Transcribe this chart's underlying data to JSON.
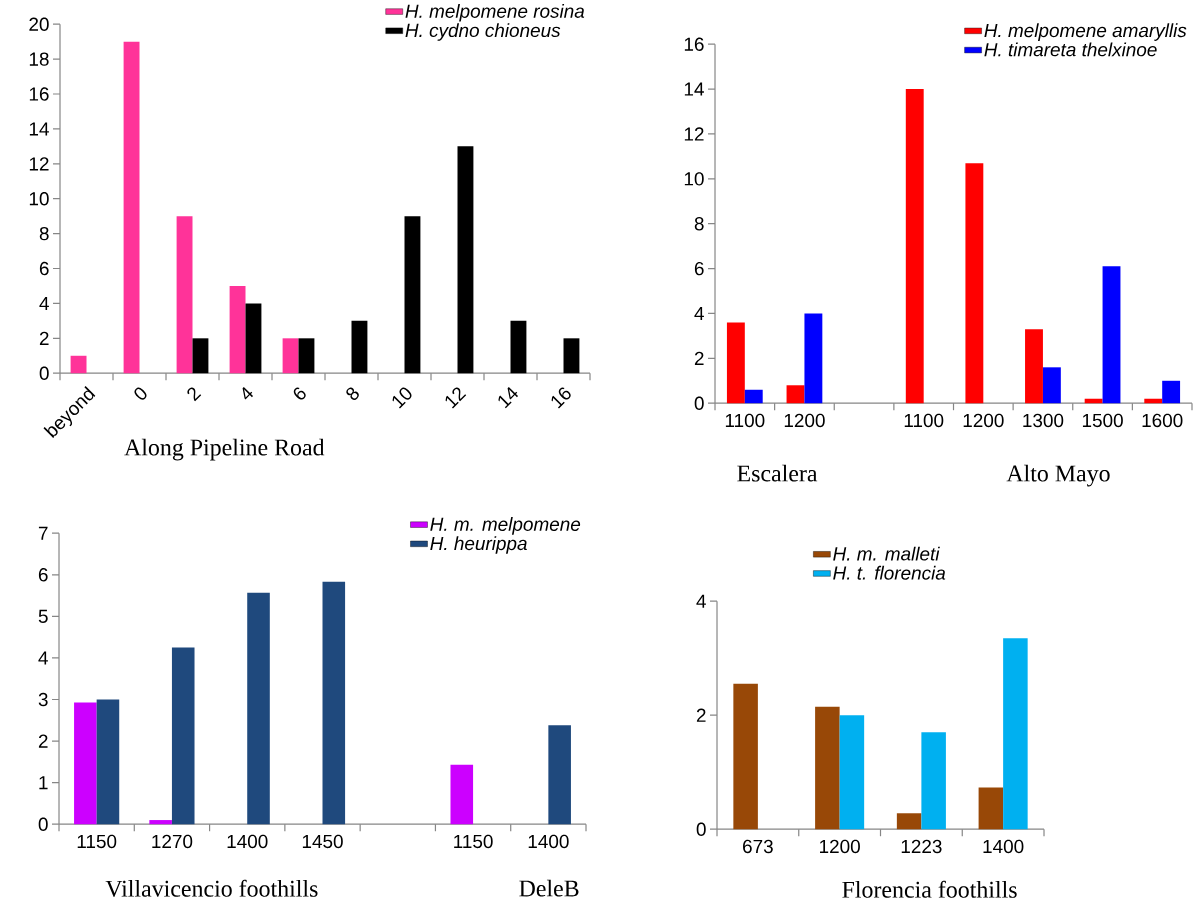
{
  "chart_data": [
    {
      "type": "bar",
      "xlabel": "Along Pipeline Road",
      "categories": [
        "beyond",
        "0",
        "2",
        "4",
        "6",
        "8",
        "10",
        "12",
        "14",
        "16"
      ],
      "series": [
        {
          "name": "H. melpomene rosina",
          "color": "#ff3399",
          "values": [
            1,
            19,
            9,
            5,
            2,
            0,
            0,
            0,
            0,
            0
          ]
        },
        {
          "name": "H. cydno chioneus",
          "color": "#000000",
          "values": [
            0,
            0,
            2,
            4,
            2,
            3,
            9,
            13,
            3,
            2
          ]
        }
      ],
      "ylim": [
        0,
        20
      ],
      "yticks": [
        0,
        2,
        4,
        6,
        8,
        10,
        12,
        14,
        16,
        18,
        20
      ],
      "legend": "top right"
    },
    {
      "type": "bar",
      "xlabel": "Escalera",
      "annotations": [
        "Alto Mayo"
      ],
      "categories": [
        "1100",
        "1200",
        null,
        "1100",
        "1200",
        "1300",
        "1500",
        "1600"
      ],
      "series": [
        {
          "name": "H. melpomene amaryllis",
          "color": "#ff0000",
          "values": [
            3.6,
            0.8,
            null,
            14,
            10.7,
            3.3,
            0.2,
            0.2
          ]
        },
        {
          "name": "H. timareta thelxinoe",
          "color": "#0000ff",
          "values": [
            0.6,
            4,
            null,
            0,
            0,
            1.6,
            6.1,
            1.0
          ]
        }
      ],
      "ylim": [
        0,
        16
      ],
      "yticks": [
        0,
        2,
        4,
        6,
        8,
        10,
        12,
        14,
        16
      ],
      "legend": "top right"
    },
    {
      "type": "bar",
      "xlabel": "Villavicencio foothills",
      "annotations": [
        "DeleB"
      ],
      "categories": [
        "1150",
        "1270",
        "1400",
        "1450",
        null,
        "1150",
        "1400"
      ],
      "series": [
        {
          "name": "H. m. melpomene",
          "color": "#cc00ff",
          "values": [
            2.93,
            0.1,
            0,
            0,
            null,
            1.43,
            0
          ]
        },
        {
          "name": "H. heurippa",
          "color": "#1f497d",
          "values": [
            3.0,
            4.25,
            5.57,
            5.83,
            null,
            0,
            2.38
          ]
        }
      ],
      "ylim": [
        0,
        7
      ],
      "yticks": [
        0,
        1,
        2,
        3,
        4,
        5,
        6,
        7
      ],
      "legend": "top right"
    },
    {
      "type": "bar",
      "xlabel": "Florencia foothills",
      "categories": [
        "673",
        "1200",
        "1223",
        "1400"
      ],
      "series": [
        {
          "name": "H. m. malleti",
          "color": "#984807",
          "values": [
            2.55,
            2.15,
            0.28,
            0.73
          ]
        },
        {
          "name": "H. t. florencia",
          "color": "#00b0f0",
          "values": [
            0,
            2.0,
            1.7,
            3.35
          ]
        }
      ],
      "ylim": [
        0,
        4
      ],
      "yticks": [
        0,
        2,
        4
      ],
      "legend": "top"
    }
  ]
}
